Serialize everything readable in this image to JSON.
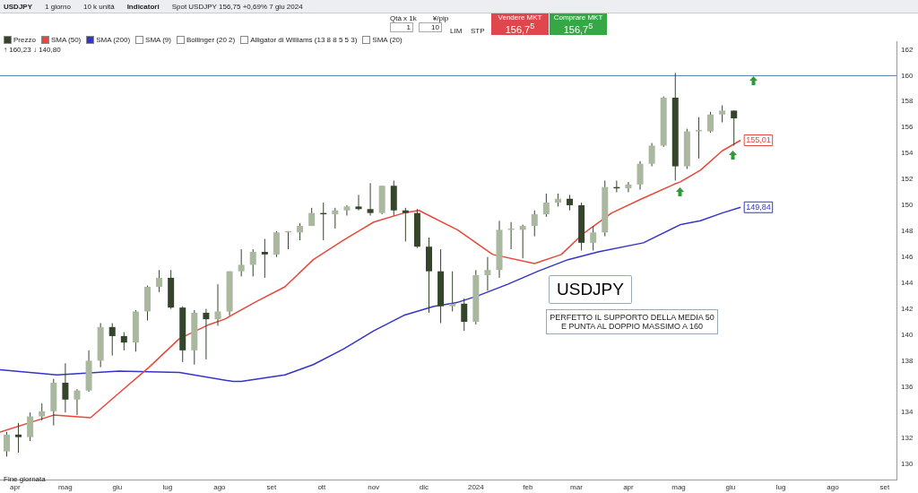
{
  "chart_data": {
    "type": "candlestick",
    "title": "USDJPY",
    "subtitle": "Spot USDJPY 156,75 +0,69% 7 giu 2024",
    "xlim": [
      "2023-03-23",
      "2024-09-08"
    ],
    "xticks": [
      {
        "value": "2023-04-01",
        "label": "apr"
      },
      {
        "value": "2023-05-01",
        "label": "mag"
      },
      {
        "value": "2023-06-01",
        "label": "giu"
      },
      {
        "value": "2023-07-01",
        "label": "lug"
      },
      {
        "value": "2023-08-01",
        "label": "ago"
      },
      {
        "value": "2023-09-01",
        "label": "set"
      },
      {
        "value": "2023-10-01",
        "label": "ott"
      },
      {
        "value": "2023-11-01",
        "label": "nov"
      },
      {
        "value": "2023-12-01",
        "label": "dic"
      },
      {
        "value": "2024-01-01",
        "label": "2024"
      },
      {
        "value": "2024-02-01",
        "label": "feb"
      },
      {
        "value": "2024-03-01",
        "label": "mar"
      },
      {
        "value": "2024-04-01",
        "label": "apr"
      },
      {
        "value": "2024-05-01",
        "label": "mag"
      },
      {
        "value": "2024-06-01",
        "label": "giu"
      },
      {
        "value": "2024-07-01",
        "label": "lug"
      },
      {
        "value": "2024-08-01",
        "label": "ago"
      },
      {
        "value": "2024-09-01",
        "label": "set"
      }
    ],
    "ylim": [
      128.8,
      162.6
    ],
    "yticks": [
      130,
      132,
      134,
      136,
      138,
      140,
      142,
      144,
      146,
      148,
      150,
      152,
      154,
      156,
      158,
      160,
      162
    ],
    "legend": "top left",
    "series": [
      {
        "name": "Prezzo",
        "type": "candlestick",
        "color": "#34452c",
        "colors": [
          "#a9b89e",
          "#34452c",
          "#a9b89e",
          "#a9b89e",
          "#a9b89e",
          "#34452c",
          "#a9b89e",
          "#a9b89e",
          "#a9b89e",
          "#34452c",
          "#34452c",
          "#a9b89e",
          "#a9b89e",
          "#a9b89e",
          "#34452c",
          "#34452c",
          "#a9b89e",
          "#34452c",
          "#a9b89e",
          "#a9b89e",
          "#a9b89e",
          "#a9b89e",
          "#34452c",
          "#a9b89e",
          "#a9b89e",
          "#a9b89e",
          "#a9b89e",
          "#34452c",
          "#a9b89e",
          "#a9b89e",
          "#34452c",
          "#34452c",
          "#a9b89e",
          "#34452c",
          "#34452c",
          "#34452c",
          "#34452c",
          "#34452c",
          "#a9b89e",
          "#34452c",
          "#a9b89e",
          "#a9b89e",
          "#a9b89e",
          "#a9b89e",
          "#a9b89e",
          "#a9b89e",
          "#a9b89e",
          "#a9b89e",
          "#34452c",
          "#34452c",
          "#a9b89e",
          "#a9b89e",
          "#34452c",
          "#a9b89e",
          "#a9b89e",
          "#a9b89e",
          "#a9b89e",
          "#34452c",
          "#a9b89e",
          "#a9b89e",
          "#a9b89e",
          "#a9b89e",
          "#34452c"
        ],
        "x": [
          "2023-03-27",
          "2023-04-03",
          "2023-04-10",
          "2023-04-17",
          "2023-04-24",
          "2023-05-01",
          "2023-05-08",
          "2023-05-15",
          "2023-05-22",
          "2023-05-29",
          "2023-06-05",
          "2023-06-12",
          "2023-06-19",
          "2023-06-26",
          "2023-07-03",
          "2023-07-10",
          "2023-07-17",
          "2023-07-24",
          "2023-07-31",
          "2023-08-07",
          "2023-08-14",
          "2023-08-21",
          "2023-08-28",
          "2023-09-04",
          "2023-09-11",
          "2023-09-18",
          "2023-09-25",
          "2023-10-02",
          "2023-10-09",
          "2023-10-16",
          "2023-10-23",
          "2023-10-30",
          "2023-11-06",
          "2023-11-13",
          "2023-11-20",
          "2023-11-27",
          "2023-12-04",
          "2023-12-11",
          "2023-12-18",
          "2023-12-25",
          "2024-01-01",
          "2024-01-08",
          "2024-01-15",
          "2024-01-22",
          "2024-01-29",
          "2024-02-05",
          "2024-02-12",
          "2024-02-19",
          "2024-02-26",
          "2024-03-04",
          "2024-03-11",
          "2024-03-18",
          "2024-03-25",
          "2024-04-01",
          "2024-04-08",
          "2024-04-15",
          "2024-04-22",
          "2024-04-29",
          "2024-05-06",
          "2024-05-13",
          "2024-05-20",
          "2024-05-27",
          "2024-06-03"
        ],
        "ohlc": [
          [
            131.0,
            132.5,
            130.6,
            132.3
          ],
          [
            132.3,
            133.2,
            130.9,
            132.1
          ],
          [
            132.1,
            134.0,
            131.8,
            133.7
          ],
          [
            133.7,
            134.7,
            133.4,
            134.1
          ],
          [
            134.1,
            136.6,
            133.0,
            136.3
          ],
          [
            136.3,
            137.8,
            134.0,
            135.0
          ],
          [
            135.0,
            135.8,
            133.8,
            135.7
          ],
          [
            135.7,
            138.8,
            135.6,
            138.0
          ],
          [
            138.0,
            140.9,
            137.5,
            140.6
          ],
          [
            140.6,
            140.9,
            138.4,
            139.9
          ],
          [
            139.9,
            140.2,
            138.8,
            139.4
          ],
          [
            139.4,
            141.9,
            138.7,
            141.8
          ],
          [
            141.8,
            143.8,
            141.1,
            143.7
          ],
          [
            143.7,
            145.0,
            143.3,
            144.4
          ],
          [
            144.4,
            145.0,
            142.0,
            142.1
          ],
          [
            142.1,
            142.2,
            137.9,
            138.8
          ],
          [
            138.8,
            141.9,
            137.7,
            141.7
          ],
          [
            141.7,
            142.0,
            138.1,
            141.2
          ],
          [
            141.2,
            143.9,
            140.7,
            141.8
          ],
          [
            141.8,
            144.9,
            141.5,
            144.9
          ],
          [
            144.9,
            146.6,
            144.5,
            145.4
          ],
          [
            145.4,
            146.6,
            144.5,
            146.4
          ],
          [
            146.4,
            147.4,
            144.4,
            146.2
          ],
          [
            146.2,
            148.0,
            146.0,
            147.9
          ],
          [
            147.9,
            148.0,
            146.6,
            148.0
          ],
          [
            147.9,
            148.6,
            147.3,
            148.4
          ],
          [
            148.4,
            149.8,
            148.4,
            149.4
          ],
          [
            149.4,
            150.2,
            147.3,
            149.3
          ],
          [
            149.3,
            149.8,
            148.2,
            149.6
          ],
          [
            149.6,
            150.0,
            149.2,
            149.9
          ],
          [
            149.9,
            150.8,
            149.6,
            149.7
          ],
          [
            149.7,
            151.7,
            149.2,
            149.4
          ],
          [
            149.4,
            151.5,
            149.3,
            151.5
          ],
          [
            151.5,
            151.9,
            149.2,
            149.6
          ],
          [
            149.6,
            149.8,
            147.2,
            149.4
          ],
          [
            149.4,
            149.7,
            146.7,
            146.8
          ],
          [
            146.8,
            147.5,
            141.7,
            144.9
          ],
          [
            144.9,
            146.6,
            140.9,
            142.2
          ],
          [
            142.2,
            144.9,
            141.8,
            142.4
          ],
          [
            142.4,
            142.8,
            140.3,
            141.0
          ],
          [
            141.0,
            145.0,
            140.8,
            144.6
          ],
          [
            144.6,
            146.0,
            143.4,
            145.0
          ],
          [
            145.0,
            148.8,
            144.4,
            148.1
          ],
          [
            148.1,
            148.7,
            146.6,
            148.2
          ],
          [
            148.1,
            148.5,
            145.9,
            148.4
          ],
          [
            148.4,
            149.6,
            147.6,
            149.3
          ],
          [
            149.3,
            150.9,
            149.1,
            150.2
          ],
          [
            150.2,
            150.9,
            149.9,
            150.5
          ],
          [
            150.5,
            150.8,
            149.6,
            150.0
          ],
          [
            150.0,
            150.2,
            146.5,
            147.1
          ],
          [
            147.1,
            148.4,
            146.5,
            147.9
          ],
          [
            147.9,
            151.9,
            147.6,
            151.4
          ],
          [
            151.4,
            151.9,
            151.0,
            151.3
          ],
          [
            151.3,
            151.8,
            151.0,
            151.6
          ],
          [
            151.6,
            153.4,
            151.2,
            153.2
          ],
          [
            153.2,
            154.8,
            153.0,
            154.6
          ],
          [
            154.6,
            158.4,
            154.5,
            158.3
          ],
          [
            158.3,
            160.2,
            151.9,
            153.0
          ],
          [
            153.0,
            155.9,
            152.8,
            155.7
          ],
          [
            155.7,
            156.8,
            153.6,
            155.8
          ],
          [
            155.7,
            157.2,
            155.6,
            157.0
          ],
          [
            157.0,
            157.7,
            156.4,
            157.3
          ],
          [
            157.3,
            157.3,
            154.6,
            156.7
          ]
        ]
      },
      {
        "name": "SMA (50)",
        "type": "line",
        "color": "#e8473a",
        "x": [
          "2023-03-23",
          "2023-04-24",
          "2023-05-16",
          "2023-06-02",
          "2023-06-20",
          "2023-07-08",
          "2023-07-26",
          "2023-08-04",
          "2023-08-22",
          "2023-09-09",
          "2023-09-26",
          "2023-10-14",
          "2023-11-01",
          "2023-11-19",
          "2023-11-28",
          "2023-12-21",
          "2024-01-11",
          "2024-02-05",
          "2024-02-21",
          "2024-03-05",
          "2024-03-22",
          "2024-04-09",
          "2024-04-28",
          "2024-05-02",
          "2024-05-14",
          "2024-05-27",
          "2024-06-07"
        ],
        "values": [
          132.5,
          133.8,
          133.6,
          135.5,
          137.5,
          139.7,
          140.8,
          141.2,
          142.5,
          143.7,
          145.8,
          147.3,
          148.7,
          149.4,
          149.6,
          148.1,
          146.2,
          145.5,
          146.2,
          147.8,
          149.4,
          150.5,
          151.6,
          151.8,
          152.7,
          154.2,
          155.01
        ],
        "value_labels": [
          null,
          null,
          null,
          null,
          null,
          null,
          null,
          null,
          null,
          null,
          null,
          null,
          null,
          null,
          null,
          null,
          null,
          null,
          null,
          null,
          null,
          null,
          null,
          null,
          null,
          null,
          "155,01"
        ]
      },
      {
        "name": "SMA (200)",
        "type": "line",
        "color": "#3434c8",
        "x": [
          "2023-03-23",
          "2023-04-26",
          "2023-06-02",
          "2023-07-08",
          "2023-08-09",
          "2023-08-14",
          "2023-09-09",
          "2023-09-26",
          "2023-10-14",
          "2023-11-01",
          "2023-11-19",
          "2023-12-07",
          "2023-12-21",
          "2024-01-02",
          "2024-01-20",
          "2024-02-07",
          "2024-02-25",
          "2024-03-14",
          "2024-04-10",
          "2024-05-02",
          "2024-05-14",
          "2024-05-27",
          "2024-06-07"
        ],
        "values": [
          137.3,
          136.9,
          137.2,
          137.1,
          136.4,
          136.4,
          136.9,
          137.7,
          138.9,
          140.3,
          141.5,
          142.2,
          142.5,
          143.0,
          143.9,
          144.9,
          145.8,
          146.4,
          147.1,
          148.5,
          148.8,
          149.4,
          149.84
        ],
        "value_labels": [
          null,
          null,
          null,
          null,
          null,
          null,
          null,
          null,
          null,
          null,
          null,
          null,
          null,
          null,
          null,
          null,
          null,
          null,
          null,
          null,
          null,
          null,
          "149,84"
        ]
      }
    ],
    "ref_lines": [
      {
        "axis": "y",
        "value": 160,
        "color": "#4a7aa8",
        "line_style": "solid"
      }
    ],
    "annotations": [
      "USDJPY",
      "PERFETTO IL SUPPORTO DELLA MEDIA 50 E PUNTA AL DOPPIO MASSIMO A 160",
      "Fine giornata",
      "1 giorno",
      "10 k unità",
      "Indicatori",
      "Qtà x 1k",
      "¥/pip",
      "LIM",
      "STP",
      "Vendere MKT",
      "Comprare MKT",
      "156,7$^{5}$",
      "156,7$^{5}$",
      "SMA (9)",
      "Bollinger (20 2)",
      "Alligator di Williams (13 8 8 5 5 3)",
      "SMA (20)",
      "↑ 160,23 ↓ 140,80",
      "1",
      "10"
    ]
  }
}
